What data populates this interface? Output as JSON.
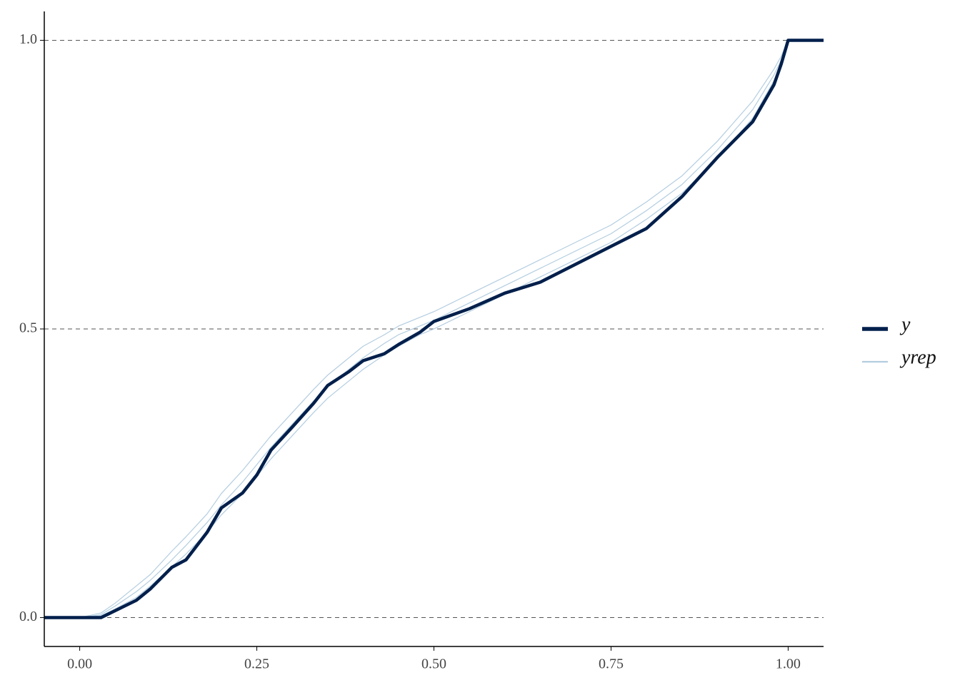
{
  "chart_data": {
    "type": "line",
    "x": [
      -0.05,
      0,
      0.03,
      0.05,
      0.08,
      0.1,
      0.13,
      0.15,
      0.18,
      0.2,
      0.23,
      0.25,
      0.27,
      0.3,
      0.33,
      0.35,
      0.38,
      0.4,
      0.43,
      0.45,
      0.48,
      0.5,
      0.55,
      0.6,
      0.65,
      0.7,
      0.75,
      0.8,
      0.85,
      0.9,
      0.95,
      0.98,
      0.99,
      1.0,
      1.05
    ],
    "series": [
      {
        "name": "y",
        "color": "#011f4b",
        "width": 4.5,
        "values": [
          0,
          0,
          0,
          0.012,
          0.03,
          0.05,
          0.087,
          0.1,
          0.148,
          0.19,
          0.216,
          0.247,
          0.29,
          0.33,
          0.371,
          0.402,
          0.426,
          0.445,
          0.457,
          0.473,
          0.494,
          0.513,
          0.535,
          0.562,
          0.581,
          0.612,
          0.643,
          0.674,
          0.729,
          0.797,
          0.859,
          0.923,
          0.958,
          1,
          1
        ]
      },
      {
        "name": "yrep",
        "color": "#b3cde0",
        "width": 1.2,
        "draws": [
          [
            0,
            0,
            0.005,
            0.02,
            0.045,
            0.065,
            0.1,
            0.125,
            0.165,
            0.195,
            0.235,
            0.265,
            0.295,
            0.335,
            0.375,
            0.4,
            0.43,
            0.45,
            0.475,
            0.49,
            0.505,
            0.515,
            0.545,
            0.575,
            0.605,
            0.635,
            0.665,
            0.705,
            0.75,
            0.81,
            0.88,
            0.94,
            0.965,
            1,
            1
          ],
          [
            0,
            0,
            0.008,
            0.025,
            0.055,
            0.075,
            0.115,
            0.14,
            0.18,
            0.215,
            0.255,
            0.285,
            0.315,
            0.355,
            0.395,
            0.42,
            0.45,
            0.47,
            0.49,
            0.505,
            0.52,
            0.53,
            0.56,
            0.59,
            0.62,
            0.65,
            0.68,
            0.72,
            0.765,
            0.825,
            0.895,
            0.95,
            0.972,
            1,
            1
          ],
          [
            0,
            0,
            0.003,
            0.015,
            0.035,
            0.055,
            0.088,
            0.11,
            0.148,
            0.178,
            0.215,
            0.245,
            0.275,
            0.315,
            0.355,
            0.38,
            0.41,
            0.43,
            0.455,
            0.47,
            0.49,
            0.5,
            0.53,
            0.56,
            0.59,
            0.62,
            0.65,
            0.69,
            0.735,
            0.795,
            0.865,
            0.93,
            0.958,
            1,
            1
          ]
        ]
      }
    ],
    "xlim": [
      -0.05,
      1.05
    ],
    "xticks": [
      {
        "value": 0,
        "label": "0.00"
      },
      {
        "value": 0.25,
        "label": "0.25"
      },
      {
        "value": 0.5,
        "label": "0.50"
      },
      {
        "value": 0.75,
        "label": "0.75"
      },
      {
        "value": 1,
        "label": "1.00"
      }
    ],
    "ylim": [
      -0.05,
      1.05
    ],
    "yticks": [
      {
        "value": 0,
        "label": "0.0"
      },
      {
        "value": 0.5,
        "label": "0.5"
      },
      {
        "value": 1,
        "label": "1.0"
      }
    ],
    "grid": true
  }
}
